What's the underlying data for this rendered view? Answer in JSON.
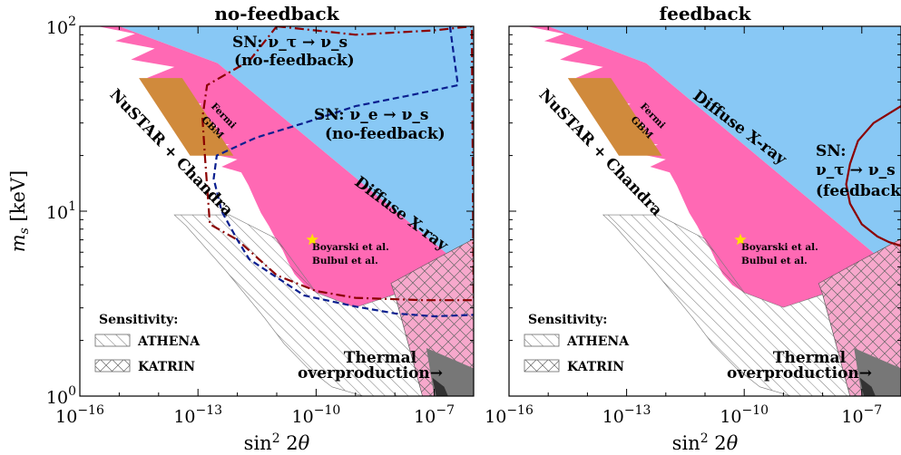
{
  "chart_data": {
    "type": "area",
    "ylabel": "m_s [keV]",
    "xlabel": "sin² 2θ",
    "x_scale": "log",
    "y_scale": "log",
    "xlim": [
      1e-16,
      1e-06
    ],
    "ylim": [
      1,
      100
    ],
    "x_ticks": [
      {
        "value": 1e-16,
        "base": "10",
        "exp": "−16"
      },
      {
        "value": 1e-13,
        "base": "10",
        "exp": "−13"
      },
      {
        "value": 1e-10,
        "base": "10",
        "exp": "−10"
      },
      {
        "value": 1e-07,
        "base": "10",
        "exp": "−7"
      }
    ],
    "y_ticks": [
      {
        "value": 1,
        "base": "10",
        "exp": "0"
      },
      {
        "value": 10,
        "base": "10",
        "exp": "1"
      },
      {
        "value": 100,
        "base": "10",
        "exp": "2"
      }
    ],
    "colors": {
      "xray": "#88c8f5",
      "nustar": "#ff69b4",
      "fermi": "#d08a3c",
      "thermal": "#777777",
      "katrin": "#f7a8cc",
      "sn_tau": "#8b0000",
      "sn_e": "#0a1f8f",
      "star": "#ffe000"
    },
    "panels": [
      {
        "title": "no-feedback",
        "labels": {
          "nustar": "NuSTAR + Chandra",
          "fermi_1": "Fermi",
          "fermi_2": "GBM",
          "xray": "Diffuse X-ray",
          "star_1": "Boyarski et al.",
          "star_2": "Bulbul et al.",
          "thermal_1": "Thermal",
          "thermal_2": "overproduction→",
          "sn_tau_1": "SN: ν_τ → ν_s",
          "sn_tau_2": "(no-feedback)",
          "sn_e_1": "SN: ν_e → ν_s",
          "sn_e_2": "(no-feedback)"
        },
        "legend": {
          "title": "Sensitivity:",
          "athena": "ATHENA",
          "katrin": "KATRIN"
        },
        "star": {
          "x": 8e-11,
          "y": 7
        },
        "sn_curves": [
          {
            "key": "sn_tau",
            "style": "dashdot",
            "points": [
              [
                1e-11,
                100
              ],
              [
                1e-09,
                90
              ],
              [
                1e-07,
                95
              ],
              [
                9e-07,
                100
              ],
              [
                9e-07,
                100
              ],
              [
                1e-06,
                3.3
              ],
              [
                5e-08,
                3.3
              ],
              [
                1e-09,
                3.4
              ],
              [
                1e-10,
                3.7
              ],
              [
                1e-11,
                4.5
              ],
              [
                1e-12,
                7
              ],
              [
                2e-13,
                8.5
              ],
              [
                1.5e-13,
                20
              ],
              [
                1.3e-13,
                32
              ],
              [
                1.7e-13,
                48
              ],
              [
                2e-12,
                65
              ],
              [
                1e-11,
                100
              ]
            ]
          },
          {
            "key": "sn_e",
            "style": "dashed",
            "points": [
              [
                2.5e-07,
                100
              ],
              [
                3e-07,
                75
              ],
              [
                4e-07,
                48
              ],
              [
                2e-08,
                42
              ],
              [
                1e-09,
                37
              ],
              [
                5e-11,
                30
              ],
              [
                3e-12,
                25
              ],
              [
                3e-13,
                20
              ],
              [
                2.5e-13,
                15
              ],
              [
                4e-13,
                10
              ],
              [
                1e-12,
                7
              ],
              [
                2e-12,
                5.5
              ],
              [
                5e-11,
                3.5
              ],
              [
                1e-09,
                3.05
              ],
              [
                1e-08,
                2.8
              ],
              [
                1e-07,
                2.7
              ],
              [
                1e-06,
                2.75
              ]
            ]
          }
        ]
      },
      {
        "title": "feedback",
        "labels": {
          "nustar": "NuSTAR + Chandra",
          "fermi_1": "Fermi",
          "fermi_2": "GBM",
          "xray": "Diffuse X-ray",
          "star_1": "Boyarski et al.",
          "star_2": "Bulbul et al.",
          "thermal_1": "Thermal",
          "thermal_2": "overproduction→",
          "sn_1": "SN:",
          "sn_2": "ν_τ → ν_s",
          "sn_3": "(feedback)"
        },
        "legend": {
          "title": "Sensitivity:",
          "athena": "ATHENA",
          "katrin": "KATRIN"
        },
        "star": {
          "x": 8e-11,
          "y": 7
        },
        "sn_curves": [
          {
            "key": "sn_tau",
            "style": "solid",
            "points": [
              [
                1e-06,
                37
              ],
              [
                2e-07,
                30
              ],
              [
                8e-08,
                24
              ],
              [
                5e-08,
                18
              ],
              [
                4e-08,
                14
              ],
              [
                5e-08,
                11
              ],
              [
                1e-07,
                8.5
              ],
              [
                2.5e-07,
                7.3
              ],
              [
                5e-07,
                6.8
              ],
              [
                1e-06,
                6.5
              ]
            ]
          }
        ]
      }
    ]
  }
}
